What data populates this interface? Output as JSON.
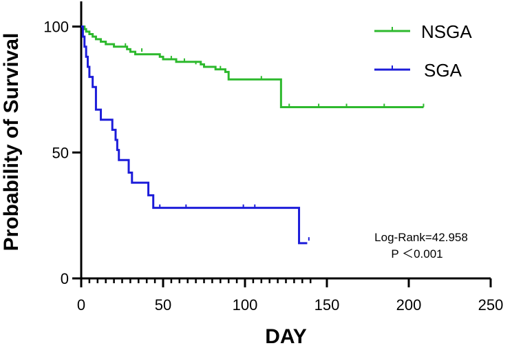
{
  "chart_data": {
    "type": "line",
    "subtype": "kaplan-meier",
    "title": "",
    "xlabel": "DAY",
    "ylabel": "Probability of Survival",
    "xlim": [
      0,
      250
    ],
    "ylim": [
      0,
      110
    ],
    "xticks": [
      0,
      50,
      100,
      150,
      200,
      250
    ],
    "yticks": [
      0,
      50,
      100
    ],
    "xtick_labels": [
      "0",
      "50",
      "100",
      "150",
      "200",
      "250"
    ],
    "ytick_labels": [
      "0",
      "50",
      "100"
    ],
    "grid": false,
    "legend_position": "top-right",
    "annotations": [
      "Log-Rank=42.958",
      "P ＜0.001"
    ],
    "series": [
      {
        "name": "NSGA",
        "color": "#2db92d",
        "steps": [
          [
            0,
            100
          ],
          [
            2,
            99
          ],
          [
            3,
            98
          ],
          [
            5,
            97
          ],
          [
            7,
            96
          ],
          [
            9,
            95
          ],
          [
            12,
            94
          ],
          [
            15,
            93
          ],
          [
            20,
            92
          ],
          [
            28,
            91
          ],
          [
            30,
            90
          ],
          [
            33,
            89
          ],
          [
            48,
            88
          ],
          [
            50,
            87
          ],
          [
            58,
            86
          ],
          [
            73,
            85
          ],
          [
            75,
            84
          ],
          [
            82,
            83
          ],
          [
            88,
            82
          ],
          [
            90,
            79
          ],
          [
            122,
            68
          ],
          [
            209,
            68
          ]
        ],
        "censored": [
          [
            27,
            92
          ],
          [
            37,
            90
          ],
          [
            55,
            87
          ],
          [
            63,
            86
          ],
          [
            70,
            85
          ],
          [
            85,
            83
          ],
          [
            110,
            79
          ],
          [
            127,
            68
          ],
          [
            145,
            68
          ],
          [
            162,
            68
          ],
          [
            185,
            68
          ],
          [
            209,
            68
          ]
        ]
      },
      {
        "name": "SGA",
        "color": "#1c1cd9",
        "steps": [
          [
            0,
            100
          ],
          [
            1,
            96
          ],
          [
            2,
            92
          ],
          [
            3,
            88
          ],
          [
            4,
            84
          ],
          [
            5,
            80
          ],
          [
            7,
            76
          ],
          [
            9,
            67
          ],
          [
            12,
            63
          ],
          [
            19,
            59
          ],
          [
            21,
            55
          ],
          [
            22,
            51
          ],
          [
            23,
            47
          ],
          [
            29,
            42
          ],
          [
            31,
            38
          ],
          [
            41,
            33
          ],
          [
            44,
            28
          ],
          [
            133,
            14
          ],
          [
            138,
            14
          ]
        ],
        "censored": [
          [
            48,
            28
          ],
          [
            64,
            28
          ],
          [
            99,
            28
          ],
          [
            106,
            28
          ],
          [
            139,
            15
          ]
        ]
      }
    ]
  }
}
